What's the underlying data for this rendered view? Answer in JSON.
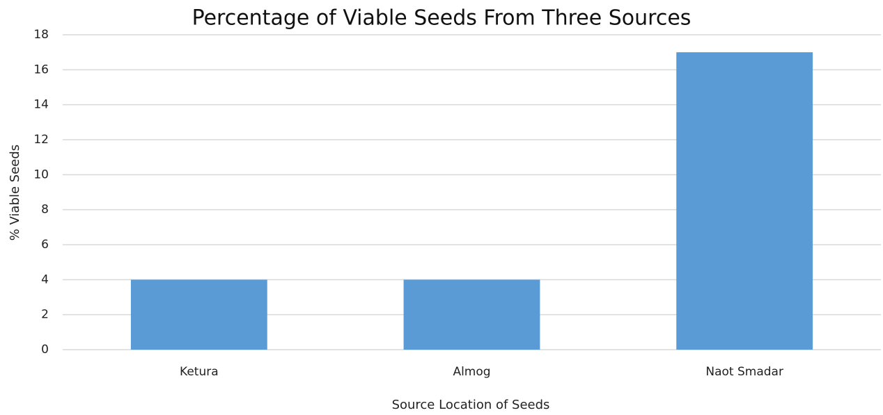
{
  "chart_data": {
    "type": "bar",
    "title": "Percentage of Viable Seeds From Three Sources",
    "x_label": "Source Location of Seeds",
    "y_label": "% Viable Seeds",
    "categories": [
      "Ketura",
      "Almog",
      "Naot Smadar"
    ],
    "values": [
      4,
      4,
      17
    ],
    "color": "#5b9bd5",
    "ylim": [
      0,
      18
    ],
    "yticks": [
      0,
      2,
      4,
      6,
      8,
      10,
      12,
      14,
      16,
      18
    ],
    "grid": true
  }
}
